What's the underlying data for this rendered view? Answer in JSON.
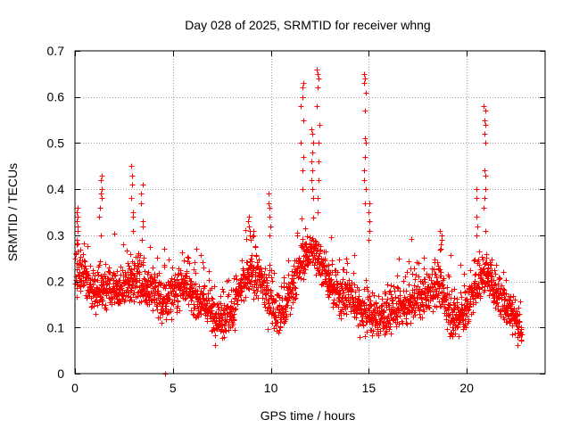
{
  "chart_data": {
    "type": "scatter",
    "title": "Day 028 of 2025, SRMTID for receiver whng",
    "xlabel": "GPS time / hours",
    "ylabel": "SRMTID / TECUs",
    "xlim": [
      0,
      24
    ],
    "ylim": [
      0,
      0.7
    ],
    "xticks": [
      0,
      5,
      10,
      15,
      20
    ],
    "xtick_labels": [
      "0",
      "5",
      "10",
      "15",
      "20"
    ],
    "yticks": [
      0,
      0.1,
      0.2,
      0.3,
      0.4,
      0.5,
      0.6,
      0.7
    ],
    "ytick_labels": [
      "0",
      "0.1",
      "0.2",
      "0.3",
      "0.4",
      "0.5",
      "0.6",
      "0.7"
    ],
    "grid": true,
    "marker": "+",
    "color": "#ff0000",
    "x_extent": [
      0,
      22.8
    ],
    "n_points": 2400,
    "baseline": [
      [
        0,
        0.22
      ],
      [
        0.5,
        0.21
      ],
      [
        1,
        0.17
      ],
      [
        1.5,
        0.19
      ],
      [
        2,
        0.18
      ],
      [
        2.5,
        0.19
      ],
      [
        3,
        0.21
      ],
      [
        3.5,
        0.19
      ],
      [
        4,
        0.18
      ],
      [
        4.5,
        0.15
      ],
      [
        5,
        0.18
      ],
      [
        5.5,
        0.2
      ],
      [
        6,
        0.17
      ],
      [
        6.5,
        0.16
      ],
      [
        7,
        0.13
      ],
      [
        7.5,
        0.12
      ],
      [
        8,
        0.13
      ],
      [
        8.5,
        0.19
      ],
      [
        9,
        0.22
      ],
      [
        9.5,
        0.2
      ],
      [
        10,
        0.15
      ],
      [
        10.5,
        0.13
      ],
      [
        11,
        0.17
      ],
      [
        11.5,
        0.24
      ],
      [
        12,
        0.27
      ],
      [
        12.5,
        0.25
      ],
      [
        13,
        0.19
      ],
      [
        13.5,
        0.17
      ],
      [
        14,
        0.17
      ],
      [
        14.5,
        0.14
      ],
      [
        15,
        0.13
      ],
      [
        15.5,
        0.12
      ],
      [
        16,
        0.13
      ],
      [
        16.5,
        0.14
      ],
      [
        17,
        0.15
      ],
      [
        17.5,
        0.17
      ],
      [
        18,
        0.17
      ],
      [
        18.5,
        0.2
      ],
      [
        19,
        0.14
      ],
      [
        19.5,
        0.12
      ],
      [
        20,
        0.14
      ],
      [
        20.5,
        0.19
      ],
      [
        21,
        0.22
      ],
      [
        21.5,
        0.18
      ],
      [
        22,
        0.15
      ],
      [
        22.5,
        0.12
      ],
      [
        22.8,
        0.1
      ]
    ],
    "spikes": [
      {
        "x": 0.1,
        "values": [
          0.36,
          0.35,
          0.34,
          0.33,
          0.32,
          0.31,
          0.29,
          0.28
        ]
      },
      {
        "x": 1.3,
        "values": [
          0.43,
          0.42,
          0.4,
          0.39,
          0.38,
          0.36,
          0.34,
          0.3
        ]
      },
      {
        "x": 2.9,
        "values": [
          0.45,
          0.43,
          0.41,
          0.38,
          0.35,
          0.34,
          0.31
        ]
      },
      {
        "x": 3.4,
        "values": [
          0.41,
          0.39,
          0.37,
          0.33,
          0.32,
          0.29
        ]
      },
      {
        "x": 8.9,
        "values": [
          0.34,
          0.33,
          0.32,
          0.31,
          0.3,
          0.29
        ]
      },
      {
        "x": 9.9,
        "values": [
          0.39,
          0.37,
          0.36,
          0.34,
          0.32,
          0.3
        ]
      },
      {
        "x": 11.6,
        "values": [
          0.63,
          0.62,
          0.6,
          0.58,
          0.55,
          0.5,
          0.47,
          0.44,
          0.4
        ]
      },
      {
        "x": 12.1,
        "values": [
          0.53,
          0.52,
          0.5,
          0.48,
          0.46,
          0.44,
          0.42,
          0.4,
          0.38
        ]
      },
      {
        "x": 12.4,
        "values": [
          0.66,
          0.65,
          0.64,
          0.62,
          0.58,
          0.54,
          0.5,
          0.46,
          0.42,
          0.38,
          0.35
        ]
      },
      {
        "x": 14.8,
        "values": [
          0.65,
          0.64,
          0.63,
          0.61,
          0.57,
          0.51,
          0.5,
          0.47,
          0.44,
          0.42,
          0.4,
          0.37
        ]
      },
      {
        "x": 15.0,
        "values": [
          0.37,
          0.35,
          0.33,
          0.31,
          0.29
        ]
      },
      {
        "x": 20.9,
        "values": [
          0.58,
          0.57,
          0.55,
          0.54,
          0.52,
          0.5,
          0.44,
          0.43,
          0.4,
          0.38,
          0.36
        ]
      },
      {
        "x": 20.5,
        "values": [
          0.4,
          0.38,
          0.34,
          0.32,
          0.3
        ]
      },
      {
        "x": 18.7,
        "values": [
          0.31,
          0.3,
          0.29,
          0.28,
          0.27
        ]
      }
    ],
    "outliers": [
      [
        4.6,
        0.0
      ]
    ]
  }
}
